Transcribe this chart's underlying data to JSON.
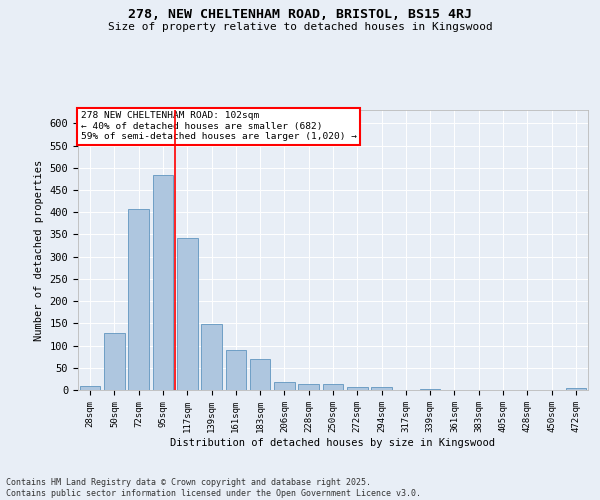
{
  "title_line1": "278, NEW CHELTENHAM ROAD, BRISTOL, BS15 4RJ",
  "title_line2": "Size of property relative to detached houses in Kingswood",
  "xlabel": "Distribution of detached houses by size in Kingswood",
  "ylabel": "Number of detached properties",
  "bar_labels": [
    "28sqm",
    "50sqm",
    "72sqm",
    "95sqm",
    "117sqm",
    "139sqm",
    "161sqm",
    "183sqm",
    "206sqm",
    "228sqm",
    "250sqm",
    "272sqm",
    "294sqm",
    "317sqm",
    "339sqm",
    "361sqm",
    "383sqm",
    "405sqm",
    "428sqm",
    "450sqm",
    "472sqm"
  ],
  "bar_values": [
    8,
    128,
    408,
    483,
    343,
    148,
    90,
    70,
    18,
    13,
    14,
    7,
    7,
    0,
    3,
    0,
    0,
    0,
    0,
    0,
    5
  ],
  "bar_color": "#aec6df",
  "bar_edgecolor": "#6096c0",
  "background_color": "#e8eef6",
  "grid_color": "#ffffff",
  "vline_x": 3.5,
  "vline_color": "red",
  "ylim": [
    0,
    630
  ],
  "yticks": [
    0,
    50,
    100,
    150,
    200,
    250,
    300,
    350,
    400,
    450,
    500,
    550,
    600
  ],
  "annotation_text": "278 NEW CHELTENHAM ROAD: 102sqm\n← 40% of detached houses are smaller (682)\n59% of semi-detached houses are larger (1,020) →",
  "annotation_box_color": "white",
  "annotation_box_edgecolor": "red",
  "footer_line1": "Contains HM Land Registry data © Crown copyright and database right 2025.",
  "footer_line2": "Contains public sector information licensed under the Open Government Licence v3.0."
}
